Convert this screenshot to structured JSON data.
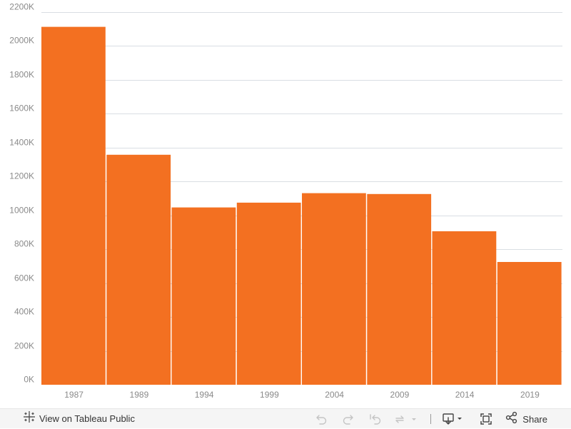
{
  "chart_data": {
    "type": "bar",
    "title": "",
    "xlabel": "",
    "ylabel": "",
    "categories": [
      "1987",
      "1989",
      "1994",
      "1999",
      "2004",
      "2009",
      "2014",
      "2019"
    ],
    "values": [
      2113000,
      1358000,
      1047000,
      1075000,
      1131000,
      1126000,
      906000,
      725000
    ],
    "ylim": [
      0,
      2200000
    ],
    "yticks": [
      0,
      200000,
      400000,
      600000,
      800000,
      1000000,
      1200000,
      1400000,
      1600000,
      1800000,
      2000000,
      2200000
    ],
    "ytick_labels": [
      "0K",
      "200K",
      "400K",
      "600K",
      "800K",
      "1000K",
      "1200K",
      "1400K",
      "1600K",
      "1800K",
      "2000K",
      "2200K"
    ],
    "grid": true,
    "legend": "none",
    "bar_color": "#f37021"
  },
  "toolbar": {
    "view_label": "View on Tableau Public",
    "share_label": "Share",
    "icons": [
      "tableau-logo-icon",
      "undo-icon",
      "redo-icon",
      "revert-icon",
      "refresh-icon",
      "download-icon",
      "fullscreen-icon",
      "share-icon"
    ]
  }
}
